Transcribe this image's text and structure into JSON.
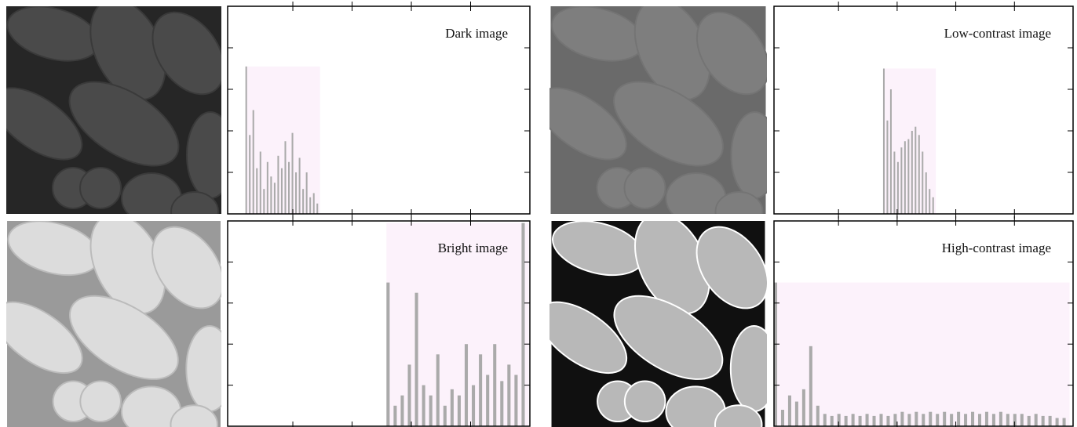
{
  "chart_data": [
    {
      "type": "histogram",
      "title": "Dark image",
      "color": "#aaaaaa",
      "shade": "#fcf2fb",
      "bins": [
        15,
        18,
        21,
        24,
        27,
        30,
        33,
        36,
        39,
        42,
        45,
        48,
        51,
        54,
        57,
        60,
        63,
        66,
        69,
        72,
        75,
        78
      ],
      "values": [
        0.71,
        0.38,
        0.5,
        0.22,
        0.3,
        0.12,
        0.25,
        0.18,
        0.15,
        0.28,
        0.22,
        0.35,
        0.25,
        0.39,
        0.2,
        0.27,
        0.12,
        0.2,
        0.08,
        0.1,
        0.05
      ],
      "xlim": [
        0,
        255
      ],
      "ylim": [
        0,
        1
      ],
      "xticks": [
        55,
        105,
        155,
        205
      ],
      "yticks": [
        0.2,
        0.4,
        0.6,
        0.8
      ]
    },
    {
      "type": "histogram",
      "title": "Low-contrast image",
      "color": "#aaaaaa",
      "shade": "#fcf2fb",
      "bins": [
        93,
        96,
        99,
        102,
        105,
        108,
        111,
        114,
        117,
        120,
        123,
        126,
        129,
        132,
        135,
        138
      ],
      "values": [
        0.7,
        0.45,
        0.6,
        0.3,
        0.25,
        0.32,
        0.35,
        0.36,
        0.4,
        0.42,
        0.38,
        0.3,
        0.2,
        0.12,
        0.08
      ],
      "xlim": [
        0,
        255
      ],
      "ylim": [
        0,
        1
      ],
      "xticks": [
        55,
        105,
        155,
        205
      ],
      "yticks": [
        0.2,
        0.4,
        0.6,
        0.8
      ]
    },
    {
      "type": "histogram",
      "title": "Bright image",
      "color": "#aaaaaa",
      "shade": "#fcf2fb",
      "bins": [
        134,
        140,
        146,
        152,
        158,
        164,
        170,
        176,
        182,
        188,
        194,
        200,
        206,
        212,
        218,
        224,
        230,
        236,
        242,
        248,
        254
      ],
      "values": [
        0.7,
        0.1,
        0.15,
        0.3,
        0.65,
        0.2,
        0.15,
        0.35,
        0.1,
        0.18,
        0.15,
        0.4,
        0.2,
        0.35,
        0.25,
        0.4,
        0.22,
        0.3,
        0.25,
        0.99
      ],
      "xlim": [
        0,
        255
      ],
      "ylim": [
        0,
        1
      ],
      "xticks": [
        55,
        105,
        155,
        205
      ],
      "yticks": [
        0.2,
        0.4,
        0.6,
        0.8
      ]
    },
    {
      "type": "histogram",
      "title": "High-contrast image",
      "color": "#aaaaaa",
      "shade": "#fcf2fb",
      "bins": [
        0,
        6,
        12,
        18,
        24,
        30,
        36,
        42,
        48,
        54,
        60,
        66,
        72,
        78,
        84,
        90,
        96,
        102,
        108,
        114,
        120,
        126,
        132,
        138,
        144,
        150,
        156,
        162,
        168,
        174,
        180,
        186,
        192,
        198,
        204,
        210,
        216,
        222,
        228,
        234,
        240,
        246,
        252
      ],
      "values": [
        0.7,
        0.08,
        0.15,
        0.12,
        0.18,
        0.39,
        0.1,
        0.06,
        0.05,
        0.06,
        0.05,
        0.06,
        0.05,
        0.06,
        0.05,
        0.06,
        0.05,
        0.06,
        0.07,
        0.06,
        0.07,
        0.06,
        0.07,
        0.06,
        0.07,
        0.06,
        0.07,
        0.06,
        0.07,
        0.06,
        0.07,
        0.06,
        0.07,
        0.06,
        0.06,
        0.06,
        0.05,
        0.06,
        0.05,
        0.05,
        0.04,
        0.04
      ],
      "xlim": [
        0,
        255
      ],
      "ylim": [
        0,
        1
      ],
      "xticks": [
        55,
        105,
        155,
        205
      ],
      "yticks": [
        0.2,
        0.4,
        0.6,
        0.8
      ]
    }
  ]
}
